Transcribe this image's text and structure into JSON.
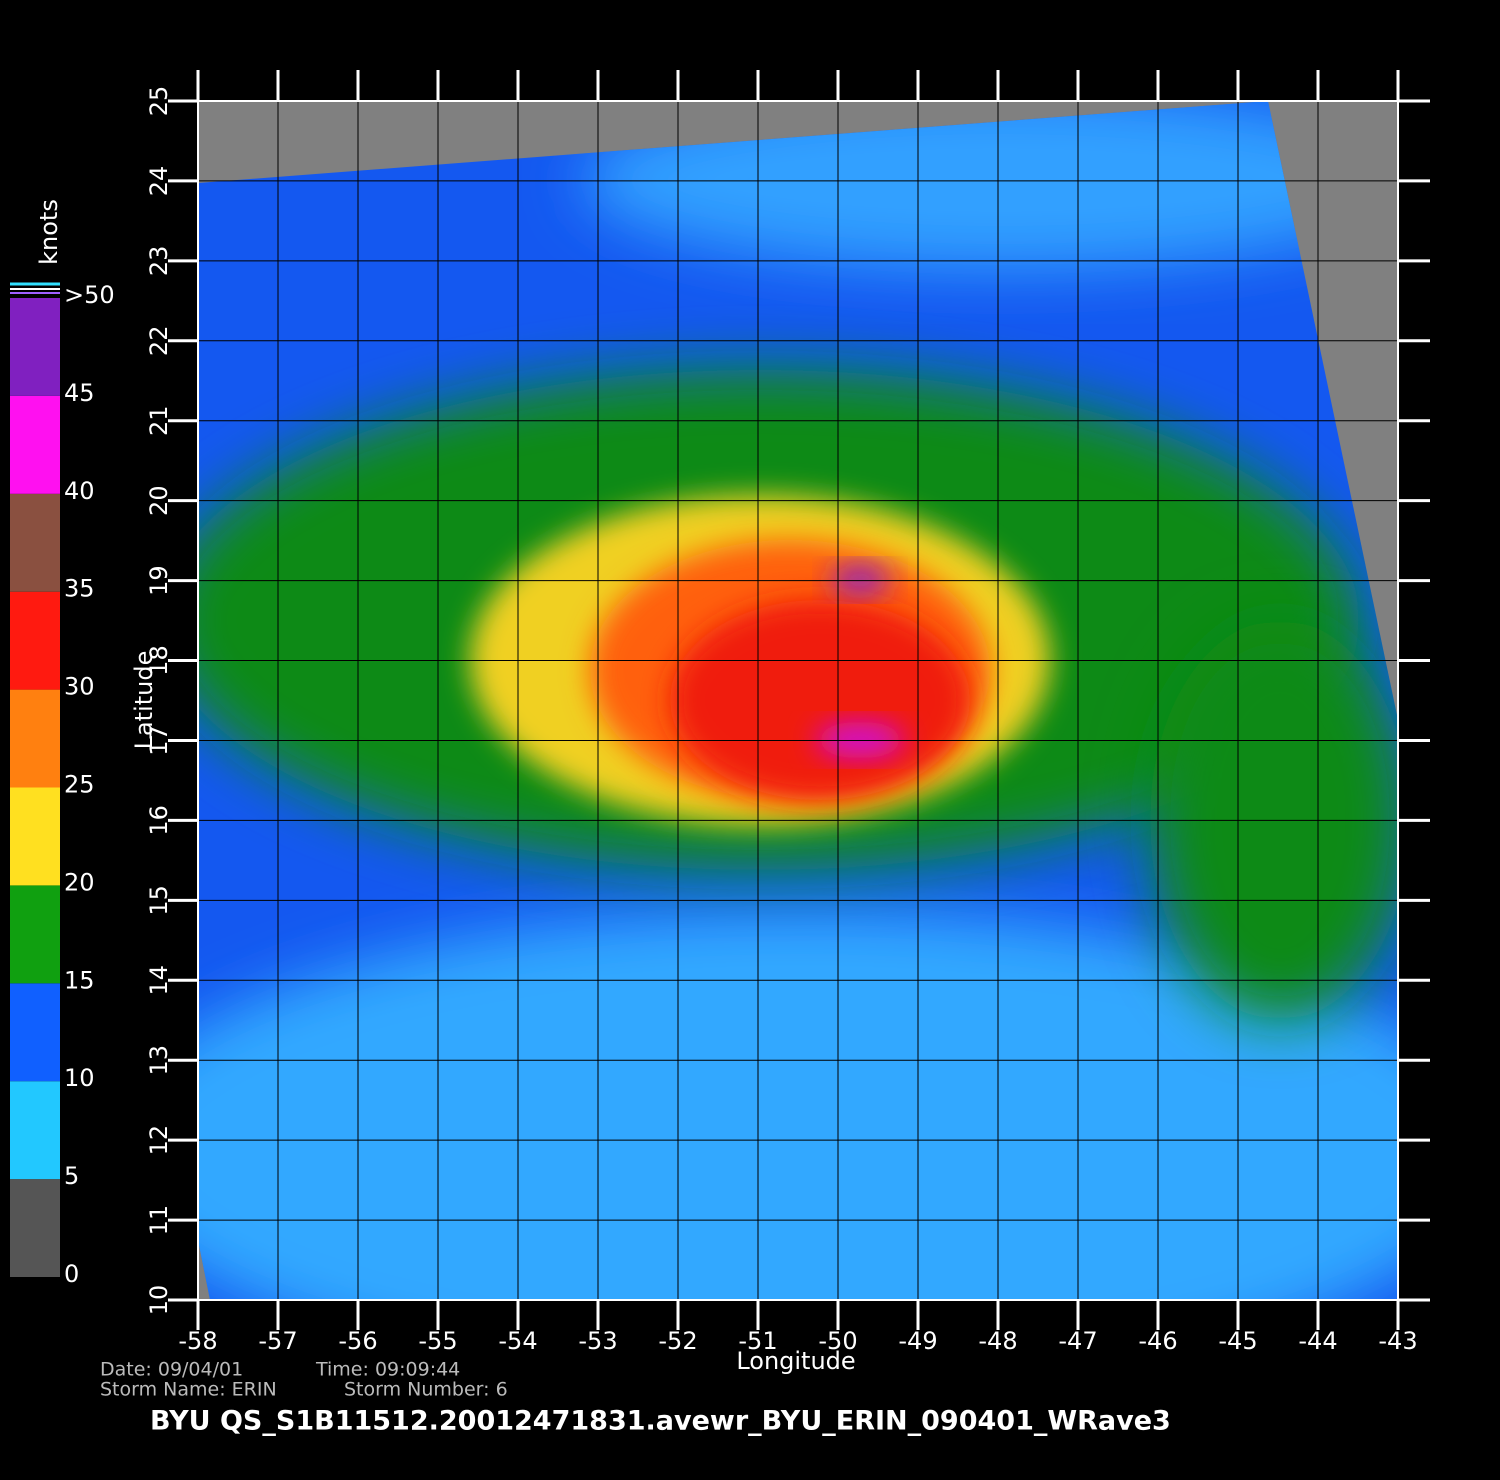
{
  "chart_data": {
    "type": "map",
    "title": "BYU  QS_S1B11512.20012471831.avewr_BYU_ERIN_090401_WRave3",
    "xlabel": "Longitude",
    "ylabel": "Latitude",
    "xlim": [
      -58,
      -43
    ],
    "ylim": [
      10,
      25
    ],
    "xticks": [
      -58,
      -57,
      -56,
      -55,
      -54,
      -53,
      -52,
      -51,
      -50,
      -49,
      -48,
      -47,
      -46,
      -45,
      -44,
      -43
    ],
    "yticks": [
      10,
      11,
      12,
      13,
      14,
      15,
      16,
      17,
      18,
      19,
      20,
      21,
      22,
      23,
      24,
      25
    ],
    "grid": true,
    "info": [
      "Date: 09/04/01",
      "Time: 09:09:44",
      "Storm  Name: ERIN",
      "Storm  Number: 6"
    ],
    "colorbar": {
      "label": "knots",
      "lim": [
        0,
        50
      ],
      "ticks": [
        0,
        5,
        10,
        15,
        20,
        25,
        30,
        35,
        40,
        45,
        {
          "value": 50,
          "label": ">50"
        }
      ],
      "colors": [
        "#555555",
        "#22c8ff",
        "#1060ff",
        "#10a010",
        "#ffe020",
        "#ff8010",
        "#ff1a10",
        "#8a5040",
        "#ff10f0",
        "#8020c0"
      ]
    }
  }
}
